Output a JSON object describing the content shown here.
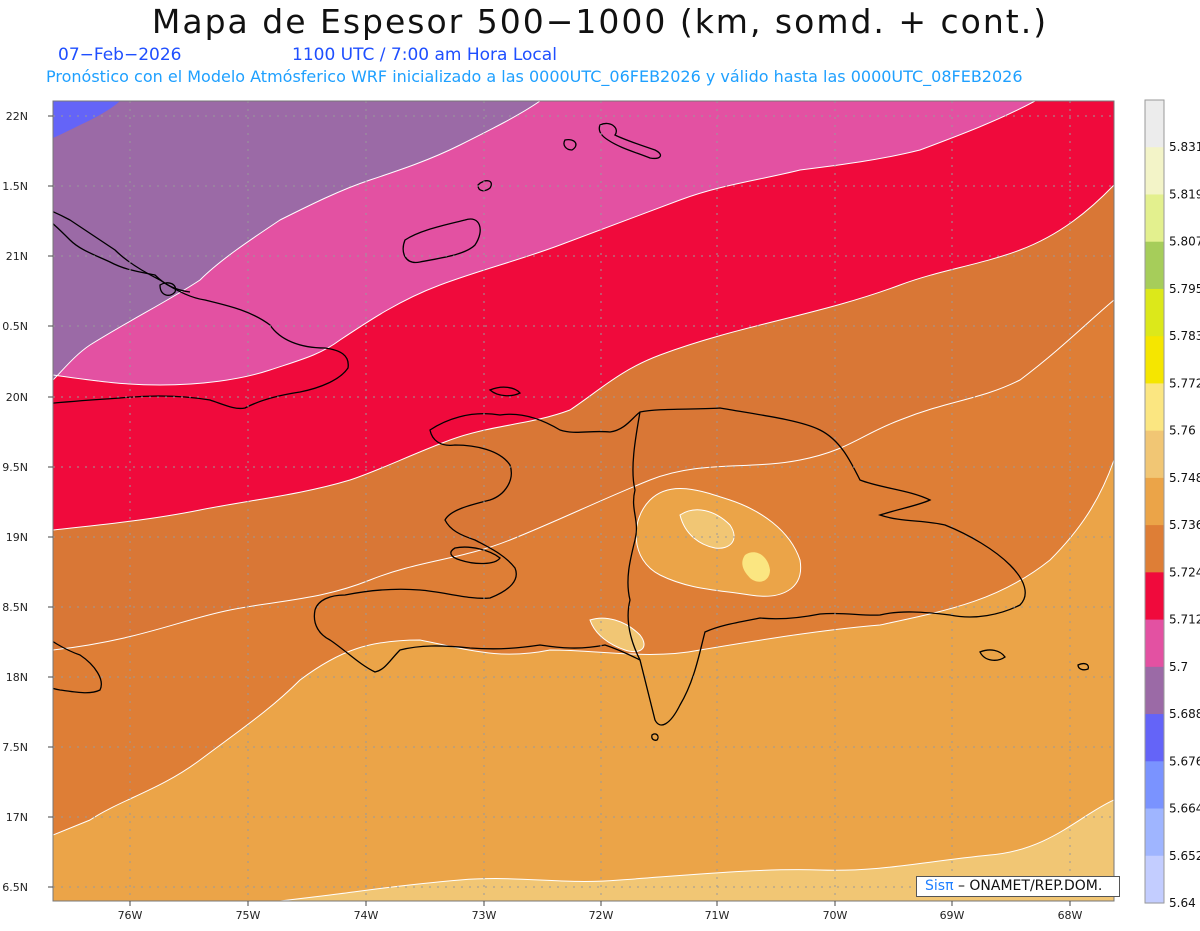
{
  "header": {
    "title": "Mapa de Espesor 500−1000 (km, somd. + cont.)",
    "date": "07−Feb−2026",
    "time": "1100 UTC / 7:00 am Hora Local",
    "subtitle": "Pronóstico con el Modelo Atmósferico WRF inicializado a las 0000UTC_06FEB2026 y válido hasta las  0000UTC_08FEB2026"
  },
  "map": {
    "lat_labels": [
      "22N",
      "1.5N",
      "21N",
      "0.5N",
      "20N",
      "9.5N",
      "19N",
      "8.5N",
      "18N",
      "7.5N",
      "17N",
      "6.5N"
    ],
    "lon_labels": [
      "76W",
      "75W",
      "74W",
      "73W",
      "72W",
      "71W",
      "70W",
      "69W",
      "68W"
    ]
  },
  "colorbar": {
    "labels": [
      "5.831",
      "5.819",
      "5.807",
      "5.795",
      "5.783",
      "5.772",
      "5.76",
      "5.748",
      "5.736",
      "5.724",
      "5.712",
      "5.7",
      "5.688",
      "5.676",
      "5.664",
      "5.652",
      "5.64"
    ],
    "colors": [
      "#ececec",
      "#f3f4c8",
      "#e3f08e",
      "#a6cd5a",
      "#dce81a",
      "#f5e600",
      "#fbe681",
      "#f1c674",
      "#eba448",
      "#de7e36",
      "#f00a3c",
      "#e351a2",
      "#9b6aa6",
      "#6464f8",
      "#7a93ff",
      "#9fb5ff",
      "#c3cdff"
    ]
  },
  "credit": {
    "sis": "Sisπ",
    "text": "– ONAMET/REP.DOM."
  },
  "colors": {
    "contour_line": "#ffffff",
    "coast_line": "#000000",
    "grid": "#9a9a9a"
  }
}
